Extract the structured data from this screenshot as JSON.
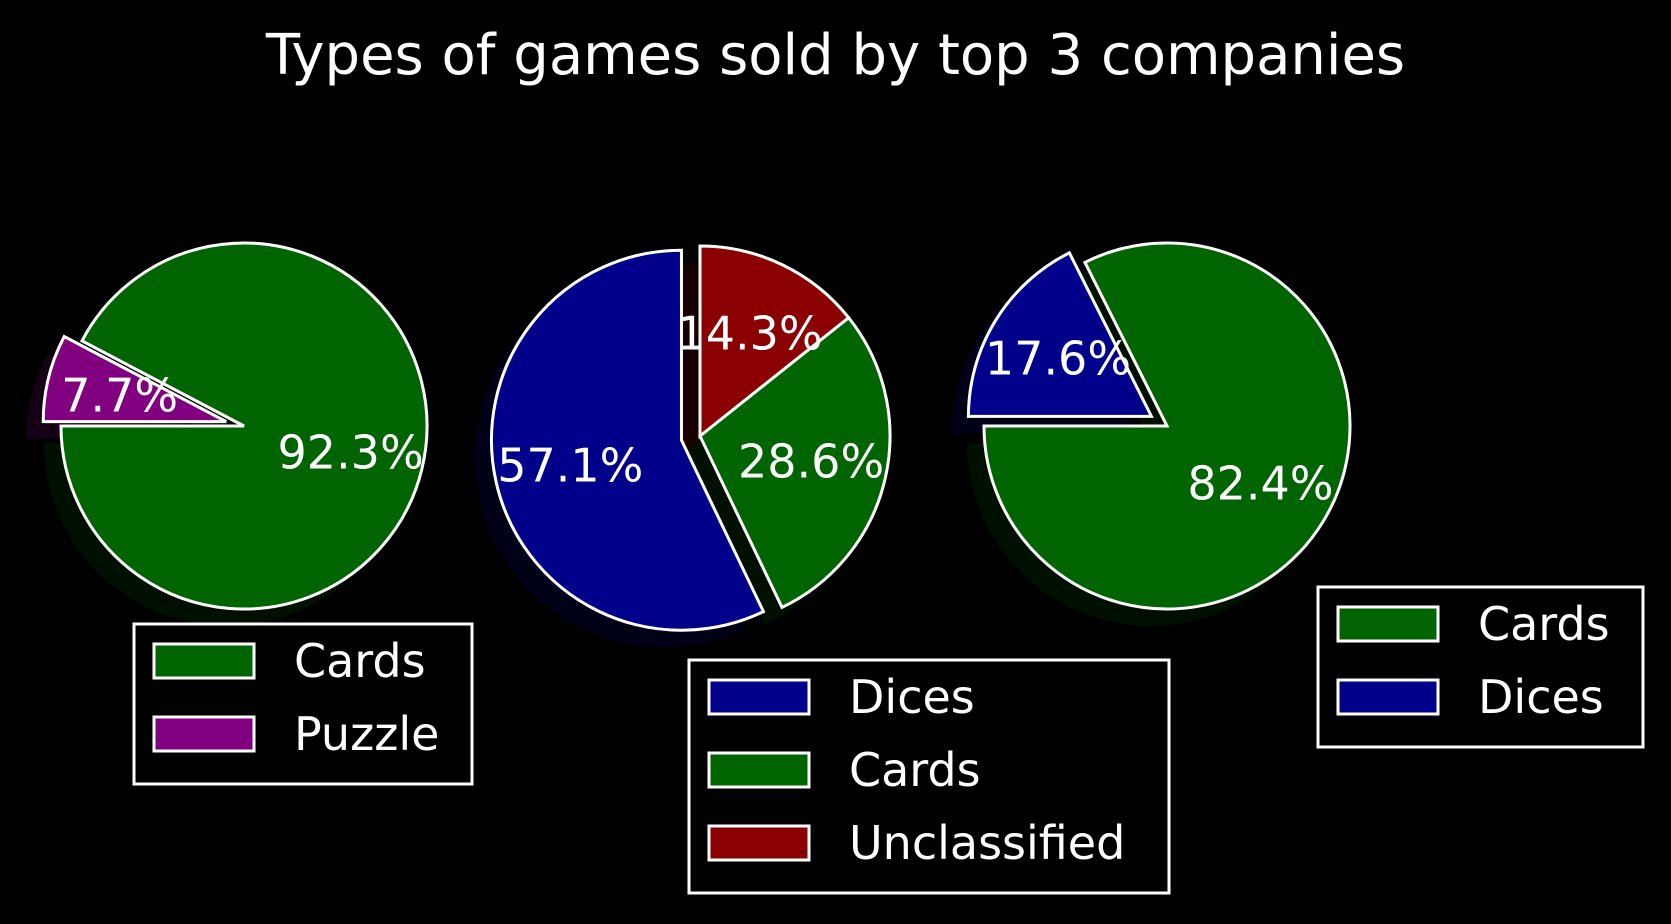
{
  "chart_data": [
    {
      "type": "pie",
      "title": "Types of games sold by top 3 companies",
      "slices": [
        {
          "label": "Cards",
          "value": 92.3,
          "display": "92.3%",
          "color": "#006400",
          "exploded": false
        },
        {
          "label": "Puzzle",
          "value": 7.7,
          "display": "7.7%",
          "color": "#800080",
          "exploded": true
        }
      ],
      "legend": [
        "Cards",
        "Puzzle"
      ],
      "legend_position": "below"
    },
    {
      "type": "pie",
      "slices": [
        {
          "label": "Dices",
          "value": 57.1,
          "display": "57.1%",
          "color": "#00008B",
          "exploded": true
        },
        {
          "label": "Cards",
          "value": 28.6,
          "display": "28.6%",
          "color": "#006400",
          "exploded": false
        },
        {
          "label": "Unclassified",
          "value": 14.3,
          "display": "14.3%",
          "color": "#8B0000",
          "exploded": false
        }
      ],
      "legend": [
        "Dices",
        "Cards",
        "Unclassified"
      ],
      "legend_position": "below"
    },
    {
      "type": "pie",
      "slices": [
        {
          "label": "Cards",
          "value": 82.4,
          "display": "82.4%",
          "color": "#006400",
          "exploded": false
        },
        {
          "label": "Dices",
          "value": 17.6,
          "display": "17.6%",
          "color": "#00008B",
          "exploded": true
        }
      ],
      "legend": [
        "Cards",
        "Dices"
      ],
      "legend_position": "lower-right"
    }
  ],
  "colors": {
    "background": "#000000",
    "edge": "#ffffff",
    "text": "#ffffff"
  }
}
